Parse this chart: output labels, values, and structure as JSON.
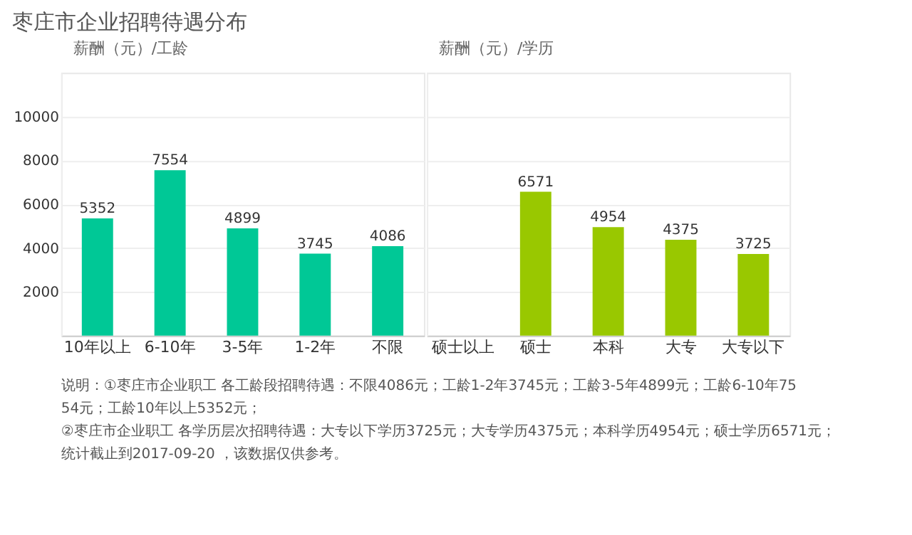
{
  "chart_data": [
    {
      "type": "bar",
      "title": "枣庄市企业招聘待遇分布",
      "ylabel": "薪酬（元）/工龄",
      "categories": [
        "10年以上",
        "6-10年",
        "3-5年",
        "1-2年",
        "不限"
      ],
      "values": [
        5352,
        7554,
        4899,
        3745,
        4086
      ],
      "color": "#00c896",
      "ylim": [
        0,
        12000
      ],
      "yticks": [
        2000,
        4000,
        6000,
        8000,
        10000
      ],
      "grid": "y",
      "data_labels": true,
      "annotations": [
        "说明：①枣庄市企业职工 各工龄段招聘待遇：不限4086元；工龄1-2年3745元；工龄3-5年4899元；工龄6-10年7554元；工龄10年以上5352元；",
        "②枣庄市企业职工 各学历层次招聘待遇：大专以下学历3725元；大专学历4375元；本科学历4954元；硕士学历6571元；",
        "统计截止到2017-09-20 ，该数据仅供参考。"
      ]
    },
    {
      "type": "bar",
      "ylabel": "薪酬（元）/学历",
      "categories": [
        "硕士以上",
        "硕士",
        "本科",
        "大专",
        "大专以下"
      ],
      "values": [
        null,
        6571,
        4954,
        4375,
        3725
      ],
      "color": "#99c800",
      "ylim": [
        0,
        12000
      ],
      "yticks": [
        2000,
        4000,
        6000,
        8000,
        10000
      ],
      "grid": "y",
      "data_labels": true,
      "tick_labels": "x"
    }
  ]
}
